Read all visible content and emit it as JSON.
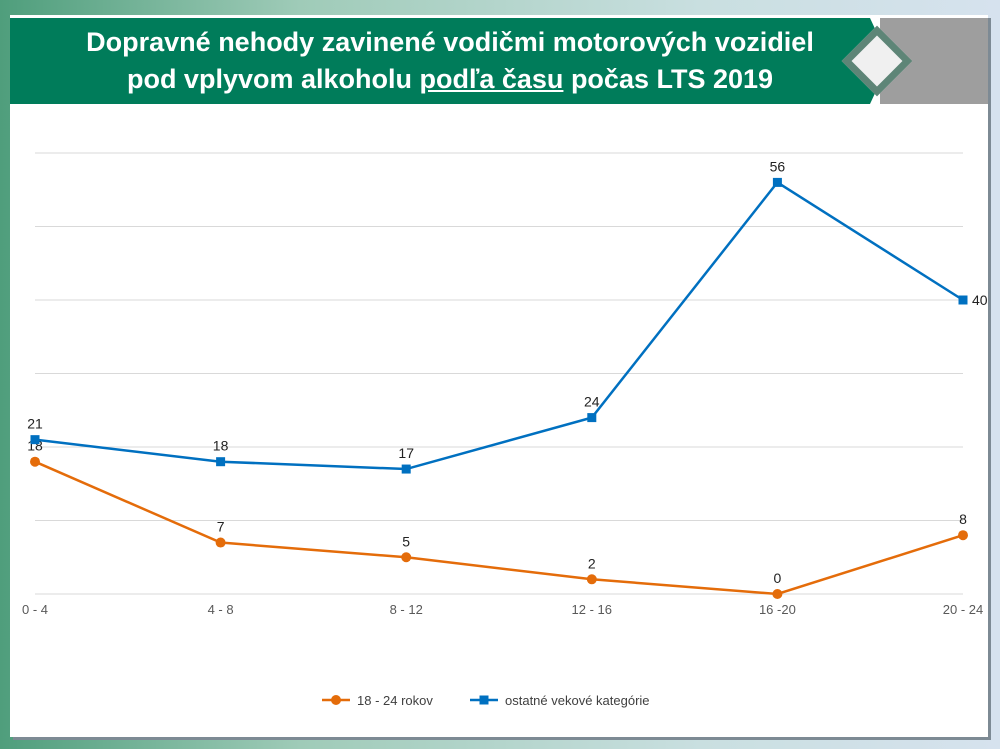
{
  "title": {
    "line1": "Dopravné nehody zavinené vodičmi motorových vozidiel",
    "line2_pre": "pod vplyvom alkoholu ",
    "line2_underlined": "podľa času",
    "line2_post": " počas LTS 2019"
  },
  "chart_data": {
    "type": "line",
    "categories": [
      "0 - 4",
      "4 - 8",
      "8 - 12",
      "12 - 16",
      "16 -20",
      "20 - 24"
    ],
    "series": [
      {
        "name": "18 - 24 rokov",
        "values": [
          18,
          7,
          5,
          2,
          0,
          8
        ],
        "color": "#e46c0a",
        "marker": "circle"
      },
      {
        "name": "ostatné vekové kategórie",
        "values": [
          21,
          18,
          17,
          24,
          56,
          40
        ],
        "color": "#0070c0",
        "marker": "square"
      }
    ],
    "ylim": [
      0,
      60
    ],
    "grid": true,
    "legend": "bottom"
  }
}
